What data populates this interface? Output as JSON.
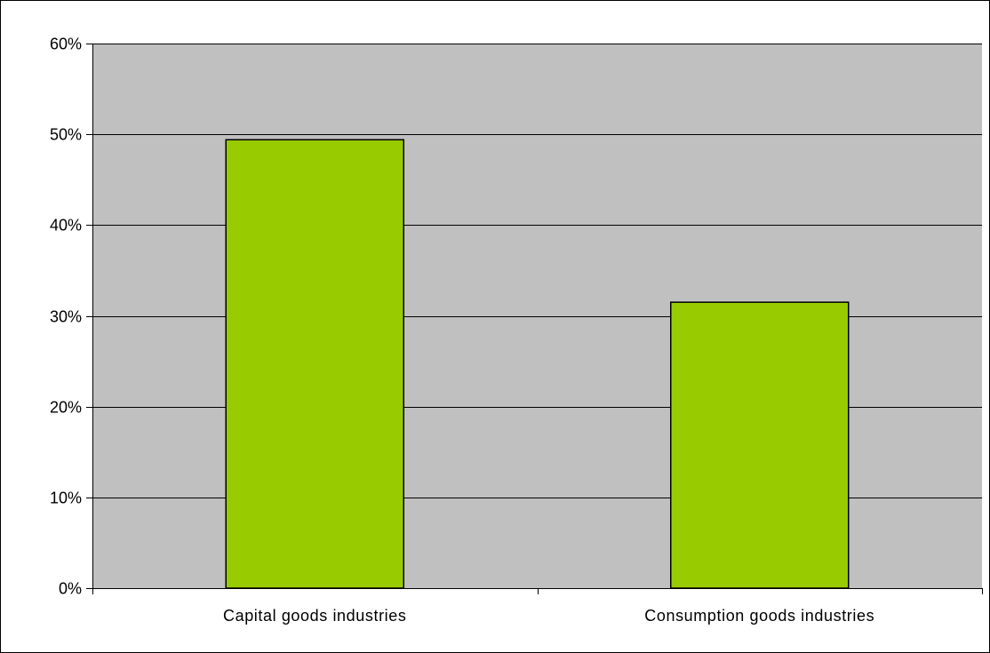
{
  "chart_data": {
    "type": "bar",
    "title": "",
    "xlabel": "",
    "ylabel": "",
    "categories": [
      "Capital goods industries",
      "Consumption goods industries"
    ],
    "values": [
      49.4,
      31.5
    ],
    "ylim": [
      0,
      60
    ],
    "y_ticks": [
      0,
      10,
      20,
      30,
      40,
      50,
      60
    ],
    "y_tick_labels": [
      "0%",
      "10%",
      "20%",
      "30%",
      "40%",
      "50%",
      "60%"
    ],
    "grid": true,
    "legend": "none",
    "colors": {
      "plot_background": "#c0c0c0",
      "bar_fill": "#99cc00",
      "bar_stroke": "#000000",
      "gridline": "#000000"
    }
  }
}
